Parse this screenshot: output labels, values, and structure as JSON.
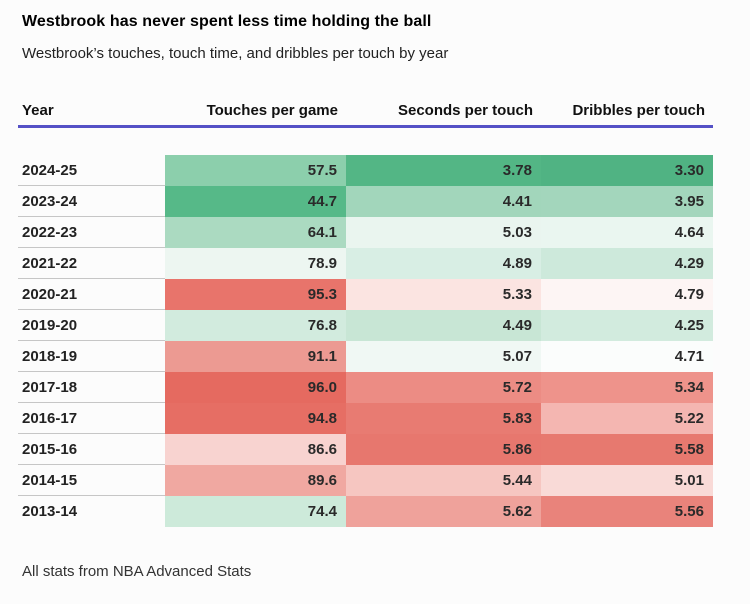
{
  "title": "Westbrook has never spent less time holding the ball",
  "subtitle": "Westbrook’s touches, touch time, and dribbles per touch by year",
  "footer_note": "All stats from NBA Advanced Stats",
  "colors": {
    "header_rule": "#5551c6",
    "row_divider": "#c6c6c6",
    "background": "#fcfcfc",
    "scale_low_green": "#52b485",
    "scale_mid_white": "#ffffff",
    "scale_high_red": "#e56a60"
  },
  "table": {
    "columns": [
      {
        "key": "year",
        "label": "Year"
      },
      {
        "key": "touches",
        "label": "Touches per game"
      },
      {
        "key": "seconds",
        "label": "Seconds per touch"
      },
      {
        "key": "dribbles",
        "label": "Dribbles per touch"
      }
    ],
    "rows": [
      {
        "year": "2024-25",
        "touches": "57.5",
        "seconds": "3.78",
        "dribbles": "3.30",
        "touches_bg": "#8ccfac",
        "seconds_bg": "#53b685",
        "dribbles_bg": "#50b383"
      },
      {
        "year": "2023-24",
        "touches": "44.7",
        "seconds": "4.41",
        "dribbles": "3.95",
        "touches_bg": "#56b988",
        "seconds_bg": "#a2d6bb",
        "dribbles_bg": "#a3d6bc"
      },
      {
        "year": "2022-23",
        "touches": "64.1",
        "seconds": "5.03",
        "dribbles": "4.64",
        "touches_bg": "#abdac1",
        "seconds_bg": "#eaf5ef",
        "dribbles_bg": "#eaf6f0"
      },
      {
        "year": "2021-22",
        "touches": "78.9",
        "seconds": "4.89",
        "dribbles": "4.29",
        "touches_bg": "#edf6f1",
        "seconds_bg": "#d8eee4",
        "dribbles_bg": "#cde9db"
      },
      {
        "year": "2020-21",
        "touches": "95.3",
        "seconds": "5.33",
        "dribbles": "4.79",
        "touches_bg": "#e8746b",
        "seconds_bg": "#fbe4e1",
        "dribbles_bg": "#fdf5f4"
      },
      {
        "year": "2019-20",
        "touches": "76.8",
        "seconds": "4.49",
        "dribbles": "4.25",
        "touches_bg": "#d2ebde",
        "seconds_bg": "#c8e6d5",
        "dribbles_bg": "#d2ebde"
      },
      {
        "year": "2018-19",
        "touches": "91.1",
        "seconds": "5.07",
        "dribbles": "4.71",
        "touches_bg": "#ec9a92",
        "seconds_bg": "#f0f8f4",
        "dribbles_bg": "#fbfdfc"
      },
      {
        "year": "2017-18",
        "touches": "96.0",
        "seconds": "5.72",
        "dribbles": "5.34",
        "touches_bg": "#e56a60",
        "seconds_bg": "#ec8c84",
        "dribbles_bg": "#ee938b"
      },
      {
        "year": "2016-17",
        "touches": "94.8",
        "seconds": "5.83",
        "dribbles": "5.22",
        "touches_bg": "#e66e64",
        "seconds_bg": "#e87b72",
        "dribbles_bg": "#f4b6b1"
      },
      {
        "year": "2015-16",
        "touches": "86.6",
        "seconds": "5.86",
        "dribbles": "5.58",
        "touches_bg": "#f8d3d0",
        "seconds_bg": "#e7776e",
        "dribbles_bg": "#e7796f"
      },
      {
        "year": "2014-15",
        "touches": "89.6",
        "seconds": "5.44",
        "dribbles": "5.01",
        "touches_bg": "#f0a8a1",
        "seconds_bg": "#f6c6c1",
        "dribbles_bg": "#f9dad7"
      },
      {
        "year": "2013-14",
        "touches": "74.4",
        "seconds": "5.62",
        "dribbles": "5.56",
        "touches_bg": "#cdeada",
        "seconds_bg": "#efa29b",
        "dribbles_bg": "#e9837b"
      }
    ]
  },
  "chart_data": {
    "type": "table",
    "title": "Westbrook has never spent less time holding the ball",
    "subtitle": "Westbrook’s touches, touch time, and dribbles per touch by year",
    "note": "All stats from NBA Advanced Stats",
    "categories": [
      "2024-25",
      "2023-24",
      "2022-23",
      "2021-22",
      "2020-21",
      "2019-20",
      "2018-19",
      "2017-18",
      "2016-17",
      "2015-16",
      "2014-15",
      "2013-14"
    ],
    "series": [
      {
        "name": "Touches per game",
        "values": [
          57.5,
          44.7,
          64.1,
          78.9,
          95.3,
          76.8,
          91.1,
          96.0,
          94.8,
          86.6,
          89.6,
          74.4
        ]
      },
      {
        "name": "Seconds per touch",
        "values": [
          3.78,
          4.41,
          5.03,
          4.89,
          5.33,
          4.49,
          5.07,
          5.72,
          5.83,
          5.86,
          5.44,
          5.62
        ]
      },
      {
        "name": "Dribbles per touch",
        "values": [
          3.3,
          3.95,
          4.64,
          4.29,
          4.79,
          4.25,
          4.71,
          5.34,
          5.22,
          5.58,
          5.01,
          5.56
        ]
      }
    ],
    "legend_position": "none",
    "style": "heatmap table, per-column diverging color scale: low values green, high values red"
  }
}
